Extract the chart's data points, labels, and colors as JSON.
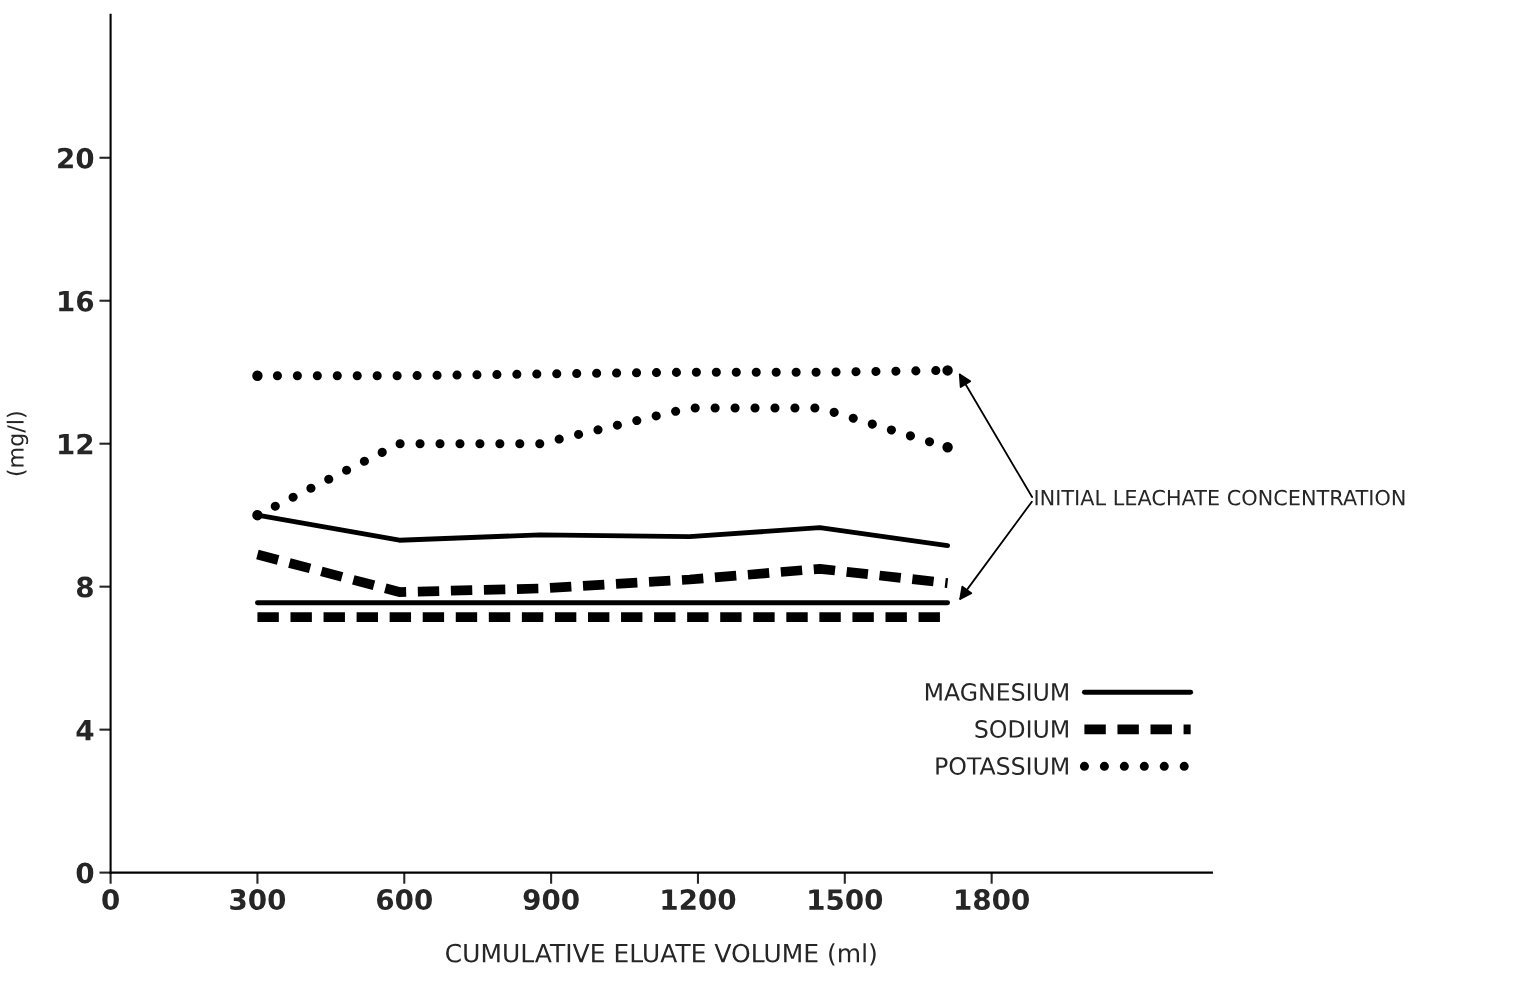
{
  "chart_data": {
    "type": "line",
    "xlabel": "CUMULATIVE ELUATE VOLUME (ml)",
    "ylabel": "(mg/l)",
    "x": [
      300,
      590,
      877,
      1183,
      1449,
      1710
    ],
    "series": [
      {
        "color": "#000000",
        "line_style": "solid",
        "values": [
          7.55,
          7.55,
          7.55,
          7.55,
          7.55,
          7.55
        ]
      },
      {
        "name": "MAGNESIUM",
        "color": "#000000",
        "line_style": "solid",
        "values": [
          10.0,
          9.3,
          9.45,
          9.4,
          9.65,
          9.15
        ]
      },
      {
        "color": "#000000",
        "line_style": "dashed",
        "values": [
          7.15,
          7.15,
          7.15,
          7.15,
          7.15,
          7.15
        ]
      },
      {
        "name": "SODIUM",
        "color": "#000000",
        "line_style": "dashed",
        "values": [
          8.9,
          7.85,
          7.95,
          8.2,
          8.5,
          8.1
        ]
      },
      {
        "color": "#000000",
        "line_style": "dotted",
        "values": [
          13.9,
          13.9,
          13.95,
          14.0,
          14.0,
          14.05
        ]
      },
      {
        "name": "POTASSIUM",
        "color": "#000000",
        "line_style": "dotted",
        "values": [
          10.0,
          12.0,
          12.0,
          13.0,
          13.0,
          11.9
        ]
      }
    ],
    "xlim": [
      0,
      2250
    ],
    "ylim": [
      0,
      24
    ],
    "xticks": [
      0,
      300,
      600,
      900,
      1200,
      1500,
      1800
    ],
    "yticks": [
      0,
      4,
      8,
      12,
      16,
      20
    ],
    "annotations": [
      "INITIAL LEACHATE CONCENTRATION"
    ],
    "legend": "right",
    "grid": false
  }
}
